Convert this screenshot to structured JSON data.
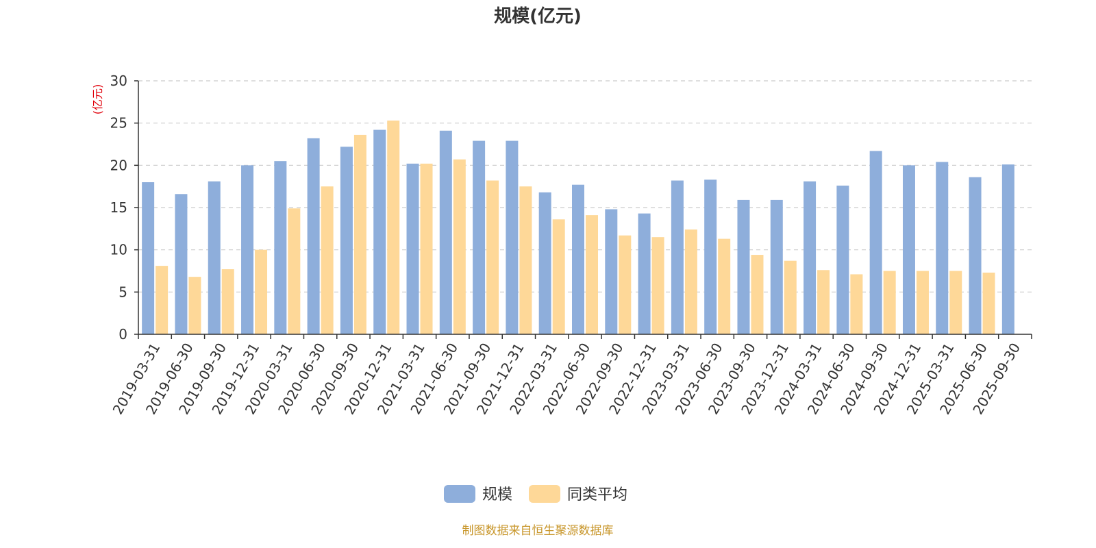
{
  "chart_data": {
    "type": "bar",
    "title": "规模(亿元)",
    "unit_label": "(亿元)",
    "categories": [
      "2019-03-31",
      "2019-06-30",
      "2019-09-30",
      "2019-12-31",
      "2020-03-31",
      "2020-06-30",
      "2020-09-30",
      "2020-12-31",
      "2021-03-31",
      "2021-06-30",
      "2021-09-30",
      "2021-12-31",
      "2022-03-31",
      "2022-06-30",
      "2022-09-30",
      "2022-12-31",
      "2023-03-31",
      "2023-06-30",
      "2023-09-30",
      "2023-12-31",
      "2024-03-31",
      "2024-06-30",
      "2024-09-30",
      "2024-12-31",
      "2025-03-31",
      "2025-06-30",
      "2025-09-30"
    ],
    "series": [
      {
        "name": "规模",
        "color": "#8eaedb",
        "values": [
          18.0,
          16.6,
          18.1,
          20.0,
          20.5,
          23.2,
          22.2,
          24.2,
          20.2,
          24.1,
          22.9,
          22.9,
          16.8,
          17.7,
          14.8,
          14.3,
          18.2,
          18.3,
          15.9,
          15.9,
          18.1,
          17.6,
          21.7,
          20.0,
          20.4,
          18.6,
          20.1
        ]
      },
      {
        "name": "同类平均",
        "color": "#fed898",
        "values": [
          8.1,
          6.8,
          7.7,
          10.0,
          14.9,
          17.5,
          23.6,
          25.3,
          20.2,
          20.7,
          18.2,
          17.5,
          13.6,
          14.1,
          11.7,
          11.5,
          12.4,
          11.3,
          9.4,
          8.7,
          7.6,
          7.1,
          7.5,
          7.5,
          7.5,
          7.3,
          null
        ]
      }
    ],
    "yticks": [
      0,
      5,
      10,
      15,
      20,
      25,
      30
    ],
    "ylim": [
      0,
      30
    ],
    "grid": true,
    "legend_position": "bottom-center"
  },
  "footer": {
    "source": "制图数据来自恒生聚源数据库"
  }
}
